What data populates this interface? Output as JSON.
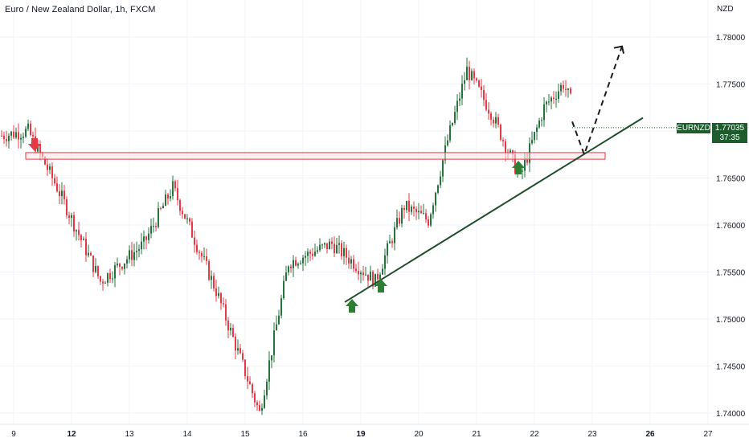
{
  "header": {
    "title": "Euro / New Zealand Dollar, 1h, FXCM",
    "currency": "NZD"
  },
  "price_tag": {
    "symbol": "EURNZD",
    "price": "1.77035",
    "countdown": "37:35"
  },
  "colors": {
    "up": "#26733d",
    "down": "#e53945",
    "zone_fill": "#fde2e4",
    "zone_stroke": "#e53945",
    "trendline": "#1e4d2b",
    "tag_bg": "#1e5c2e",
    "grid": "#f0f3fa"
  },
  "chart_data": {
    "type": "candlestick",
    "title": "Euro / New Zealand Dollar, 1h, FXCM",
    "ylim": [
      1.7395,
      1.7815
    ],
    "y_ticks": [
      "1.78000",
      "1.77500",
      "1.77000",
      "1.76500",
      "1.76000",
      "1.75500",
      "1.75000",
      "1.74500",
      "1.74000"
    ],
    "x_ticks": [
      "9",
      "12",
      "13",
      "14",
      "15",
      "16",
      "19",
      "20",
      "21",
      "22",
      "23",
      "26",
      "27"
    ],
    "bold_x_ticks": [
      "12",
      "19",
      "26"
    ],
    "last_price": 1.77035,
    "resistance_zone": [
      1.767,
      1.7677
    ],
    "trendline": {
      "from": [
        "18",
        1.7518
      ],
      "to": [
        "23",
        1.771
      ]
    },
    "key_points": [
      {
        "time": "9",
        "price": 1.77
      },
      {
        "time": "9",
        "price": 1.764
      },
      {
        "time": "12",
        "price": 1.754
      },
      {
        "time": "13",
        "price": 1.758
      },
      {
        "time": "13",
        "price": 1.764
      },
      {
        "time": "14",
        "price": 1.753
      },
      {
        "time": "15",
        "price": 1.74
      },
      {
        "time": "15",
        "price": 1.756
      },
      {
        "time": "16",
        "price": 1.758
      },
      {
        "time": "19",
        "price": 1.754
      },
      {
        "time": "19",
        "price": 1.762
      },
      {
        "time": "20",
        "price": 1.7605
      },
      {
        "time": "20",
        "price": 1.769
      },
      {
        "time": "20",
        "price": 1.7765
      },
      {
        "time": "21",
        "price": 1.772
      },
      {
        "time": "21",
        "price": 1.765
      },
      {
        "time": "22",
        "price": 1.7725
      },
      {
        "time": "22",
        "price": 1.775
      },
      {
        "time": "22",
        "price": 1.7703
      }
    ],
    "projection": [
      {
        "time": "22",
        "price": 1.771
      },
      {
        "time": "23",
        "price": 1.7675
      },
      {
        "time": "23",
        "price": 1.779
      }
    ],
    "arrows": [
      {
        "type": "down",
        "time": "9",
        "price": 1.7685
      },
      {
        "type": "up",
        "time": "19",
        "price": 1.751
      },
      {
        "type": "up",
        "time": "19",
        "price": 1.7535
      },
      {
        "type": "up",
        "time": "22",
        "price": 1.766
      }
    ]
  }
}
